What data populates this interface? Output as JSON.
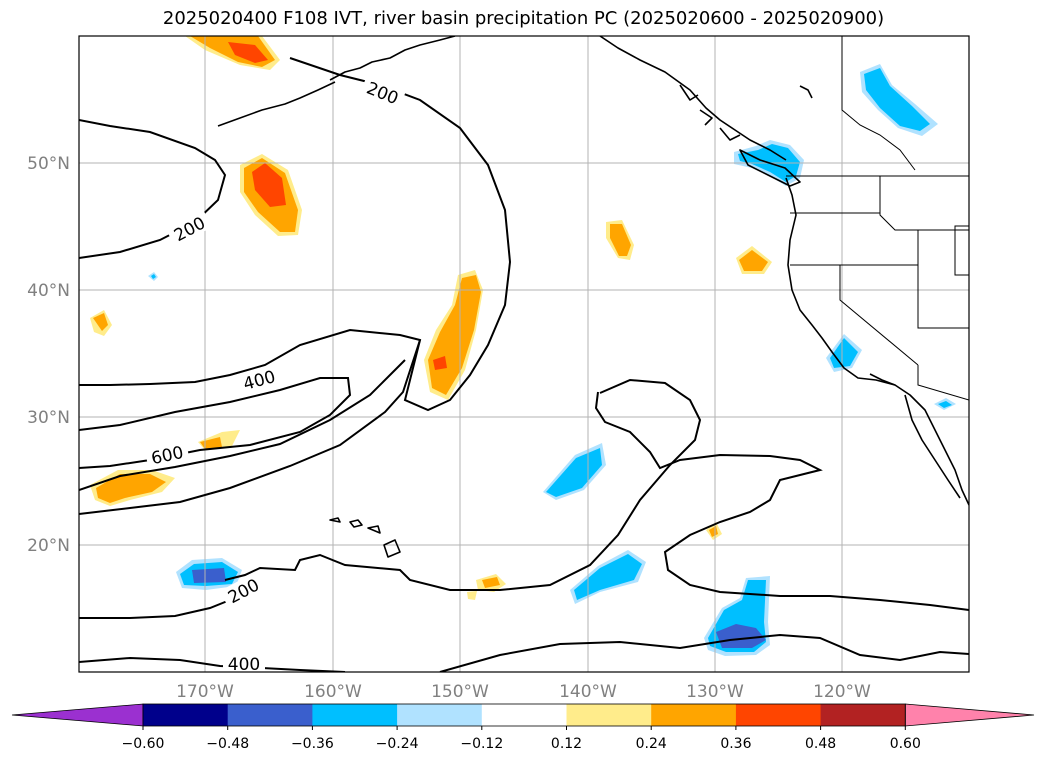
{
  "title": "2025020400 F108 IVT, river basin precipitation PC (2025020600 - 2025020900)",
  "map": {
    "lat_labels": [
      "50°N",
      "40°N",
      "30°N",
      "20°N"
    ],
    "lon_labels": [
      "170°W",
      "160°W",
      "150°W",
      "140°W",
      "130°W",
      "120°W"
    ],
    "ivt_contour_labels": [
      "200",
      "200",
      "400",
      "600",
      "200",
      "400"
    ]
  },
  "colorbar": {
    "ticks": [
      "−0.60",
      "−0.48",
      "−0.36",
      "−0.24",
      "−0.12",
      "0.12",
      "0.24",
      "0.36",
      "0.48",
      "0.60"
    ],
    "colors": {
      "extend_low": "#9b30d0",
      "bins": [
        "#00008b",
        "#3a5fcd",
        "#00bfff",
        "#b0e2ff",
        "#ffffff",
        "#ffec8b",
        "#ffa500",
        "#ff4500",
        "#b22222"
      ],
      "extend_high": "#ff82ab"
    }
  }
}
